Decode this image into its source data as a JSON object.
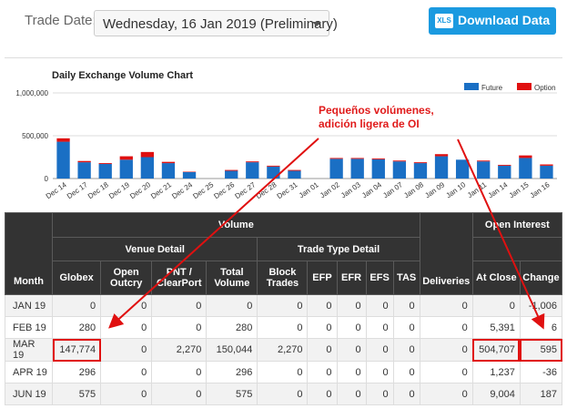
{
  "header": {
    "trade_date_label": "Trade Date:",
    "trade_date_value": "Wednesday, 16 Jan 2019 (Preliminary)",
    "download_label": "Download Data",
    "download_icon_text": "XLS"
  },
  "annotation": {
    "line1": "Pequeños volúmenes,",
    "line2": "adición ligera de OI"
  },
  "chart_data": {
    "type": "bar",
    "title": "Daily Exchange Volume Chart",
    "stacked": true,
    "categories": [
      "Dec 14",
      "Dec 17",
      "Dec 18",
      "Dec 19",
      "Dec 20",
      "Dec 21",
      "Dec 24",
      "Dec 25",
      "Dec 26",
      "Dec 27",
      "Dec 28",
      "Dec 31",
      "Jan 01",
      "Jan 02",
      "Jan 03",
      "Jan 04",
      "Jan 07",
      "Jan 08",
      "Jan 09",
      "Jan 10",
      "Jan 11",
      "Jan 14",
      "Jan 15",
      "Jan 16"
    ],
    "series": [
      {
        "name": "Future",
        "color": "#1a6fc4",
        "values": [
          430000,
          190000,
          170000,
          220000,
          250000,
          180000,
          75000,
          0,
          90000,
          190000,
          140000,
          90000,
          0,
          230000,
          230000,
          225000,
          200000,
          180000,
          260000,
          220000,
          200000,
          150000,
          240000,
          150000
        ]
      },
      {
        "name": "Option",
        "color": "#e01010",
        "values": [
          40000,
          15000,
          10000,
          40000,
          60000,
          15000,
          5000,
          0,
          10000,
          10000,
          10000,
          10000,
          0,
          10000,
          10000,
          10000,
          10000,
          10000,
          25000,
          0,
          10000,
          10000,
          30000,
          15000
        ]
      }
    ],
    "y_ticks": [
      "1,000,000",
      "500,000",
      "0"
    ],
    "ylim": [
      0,
      1000000
    ],
    "grid": true,
    "legend_placement": "top-right"
  },
  "table": {
    "group_headers": {
      "volume": "Volume",
      "open_interest": "Open Interest",
      "venue_detail": "Venue Detail",
      "trade_type_detail": "Trade Type Detail"
    },
    "columns": [
      "Month",
      "Globex",
      "Open Outcry",
      "PNT / ClearPort",
      "Total Volume",
      "Block Trades",
      "EFP",
      "EFR",
      "EFS",
      "TAS",
      "Deliveries",
      "At Close",
      "Change"
    ],
    "rows": [
      [
        "JAN 19",
        "0",
        "0",
        "0",
        "0",
        "0",
        "0",
        "0",
        "0",
        "0",
        "0",
        "0",
        "-1,006"
      ],
      [
        "FEB 19",
        "280",
        "0",
        "0",
        "280",
        "0",
        "0",
        "0",
        "0",
        "0",
        "0",
        "5,391",
        "6"
      ],
      [
        "MAR 19",
        "147,774",
        "0",
        "2,270",
        "150,044",
        "2,270",
        "0",
        "0",
        "0",
        "0",
        "0",
        "504,707",
        "595"
      ],
      [
        "APR 19",
        "296",
        "0",
        "0",
        "296",
        "0",
        "0",
        "0",
        "0",
        "0",
        "0",
        "1,237",
        "-36"
      ],
      [
        "JUN 19",
        "575",
        "0",
        "0",
        "575",
        "0",
        "0",
        "0",
        "0",
        "0",
        "0",
        "9,004",
        "187"
      ]
    ]
  }
}
